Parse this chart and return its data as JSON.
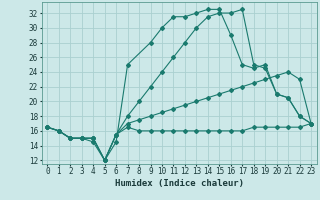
{
  "xlabel": "Humidex (Indice chaleur)",
  "xlim": [
    -0.5,
    23.5
  ],
  "ylim": [
    11.5,
    33.5
  ],
  "yticks": [
    12,
    14,
    16,
    18,
    20,
    22,
    24,
    26,
    28,
    30,
    32
  ],
  "xticks": [
    0,
    1,
    2,
    3,
    4,
    5,
    6,
    7,
    8,
    9,
    10,
    11,
    12,
    13,
    14,
    15,
    16,
    17,
    18,
    19,
    20,
    21,
    22,
    23
  ],
  "background_color": "#cce8e8",
  "grid_color": "#aad0d0",
  "line_color": "#1a7a6e",
  "lines": [
    {
      "x": [
        0,
        1,
        2,
        3,
        4,
        5,
        6,
        7,
        8,
        9,
        10,
        11,
        12,
        13,
        14,
        15,
        16,
        17,
        18,
        19,
        20,
        21,
        22,
        23
      ],
      "y": [
        16.5,
        16,
        15,
        15,
        15,
        12,
        15.5,
        16.5,
        16,
        16,
        16,
        16,
        16,
        16,
        16,
        16,
        16,
        16,
        16.5,
        16.5,
        16.5,
        16.5,
        16.5,
        17
      ]
    },
    {
      "x": [
        0,
        1,
        2,
        3,
        4,
        5,
        6,
        7,
        8,
        9,
        10,
        11,
        12,
        13,
        14,
        15,
        16,
        17,
        18,
        19,
        20,
        21,
        22,
        23
      ],
      "y": [
        16.5,
        16,
        15,
        15,
        15,
        12,
        15.5,
        17,
        17.5,
        18,
        18.5,
        19,
        19.5,
        20,
        20.5,
        21,
        21.5,
        22,
        22.5,
        23,
        23.5,
        24,
        23,
        17
      ]
    },
    {
      "x": [
        0,
        1,
        2,
        3,
        4,
        5,
        6,
        7,
        8,
        9,
        10,
        11,
        12,
        13,
        14,
        15,
        16,
        17,
        18,
        19,
        20,
        21,
        22,
        23
      ],
      "y": [
        16.5,
        16,
        15,
        15,
        15,
        12,
        15.5,
        18,
        20,
        22,
        24,
        26,
        28,
        30,
        31.5,
        32,
        32,
        32.5,
        25,
        24.5,
        21,
        20.5,
        18,
        17
      ]
    },
    {
      "x": [
        0,
        1,
        2,
        3,
        4,
        5,
        6,
        7,
        9,
        10,
        11,
        12,
        13,
        14,
        15,
        16,
        17,
        18,
        19,
        20,
        21,
        22,
        23
      ],
      "y": [
        16.5,
        16,
        15,
        15,
        14.5,
        12,
        14.5,
        25,
        28,
        30,
        31.5,
        31.5,
        32,
        32.5,
        32.5,
        29,
        25,
        24.5,
        25,
        21,
        20.5,
        18,
        17
      ]
    }
  ]
}
